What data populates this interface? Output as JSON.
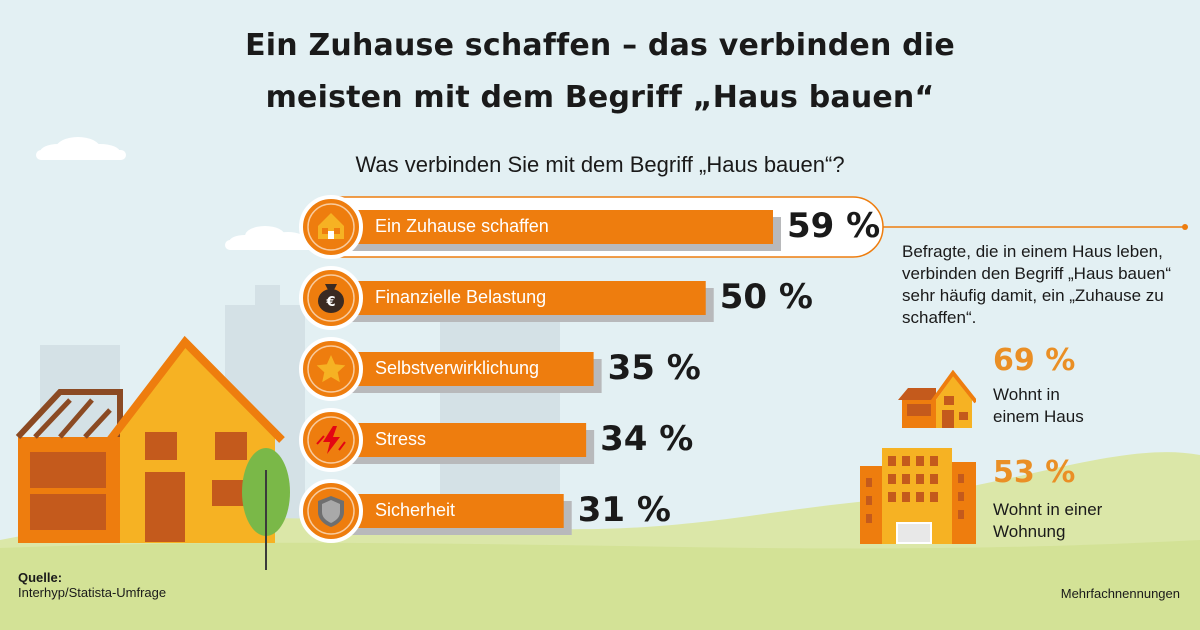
{
  "title_line1": "Ein Zuhause schaffen – das verbinden die",
  "title_line2": "meisten mit dem Begriff „Haus bauen“",
  "chart_data": {
    "type": "bar",
    "subtitle": "Was verbinden Sie mit dem Begriff „Haus bauen“?",
    "categories": [
      "Ein Zuhause schaffen",
      "Finanzielle Belastung",
      "Selbstverwirklichung",
      "Stress",
      "Sicherheit"
    ],
    "values": [
      59,
      50,
      35,
      34,
      31
    ],
    "value_labels": [
      "59 %",
      "50 %",
      "35 %",
      "34 %",
      "31 %"
    ],
    "icons": [
      "house-icon",
      "money-bag-icon",
      "star-icon",
      "lightning-icon",
      "shield-icon"
    ],
    "unit": "%",
    "bar_color": "#ee7d0e"
  },
  "note": {
    "text": "Befragte, die in einem Haus leben, verbinden den Begriff „Haus bauen“ sehr häufig damit, ein „Zuhause zu schaffen“."
  },
  "stats": [
    {
      "value": "69 %",
      "line1": "Wohnt in",
      "line2": "einem Haus",
      "icon": "small-house-icon"
    },
    {
      "value": "53 %",
      "line1": "Wohnt in einer",
      "line2": "Wohnung",
      "icon": "apartment-building-icon"
    }
  ],
  "source_label": "Quelle:",
  "source_text": "Interhyp/Statista-Umfrage",
  "footnote": "Mehrfachnennungen",
  "colors": {
    "accent": "#ee7d0e",
    "orange_text": "#ea8f25",
    "sky": "#e3f0f3",
    "grass": "#d6e39c"
  }
}
